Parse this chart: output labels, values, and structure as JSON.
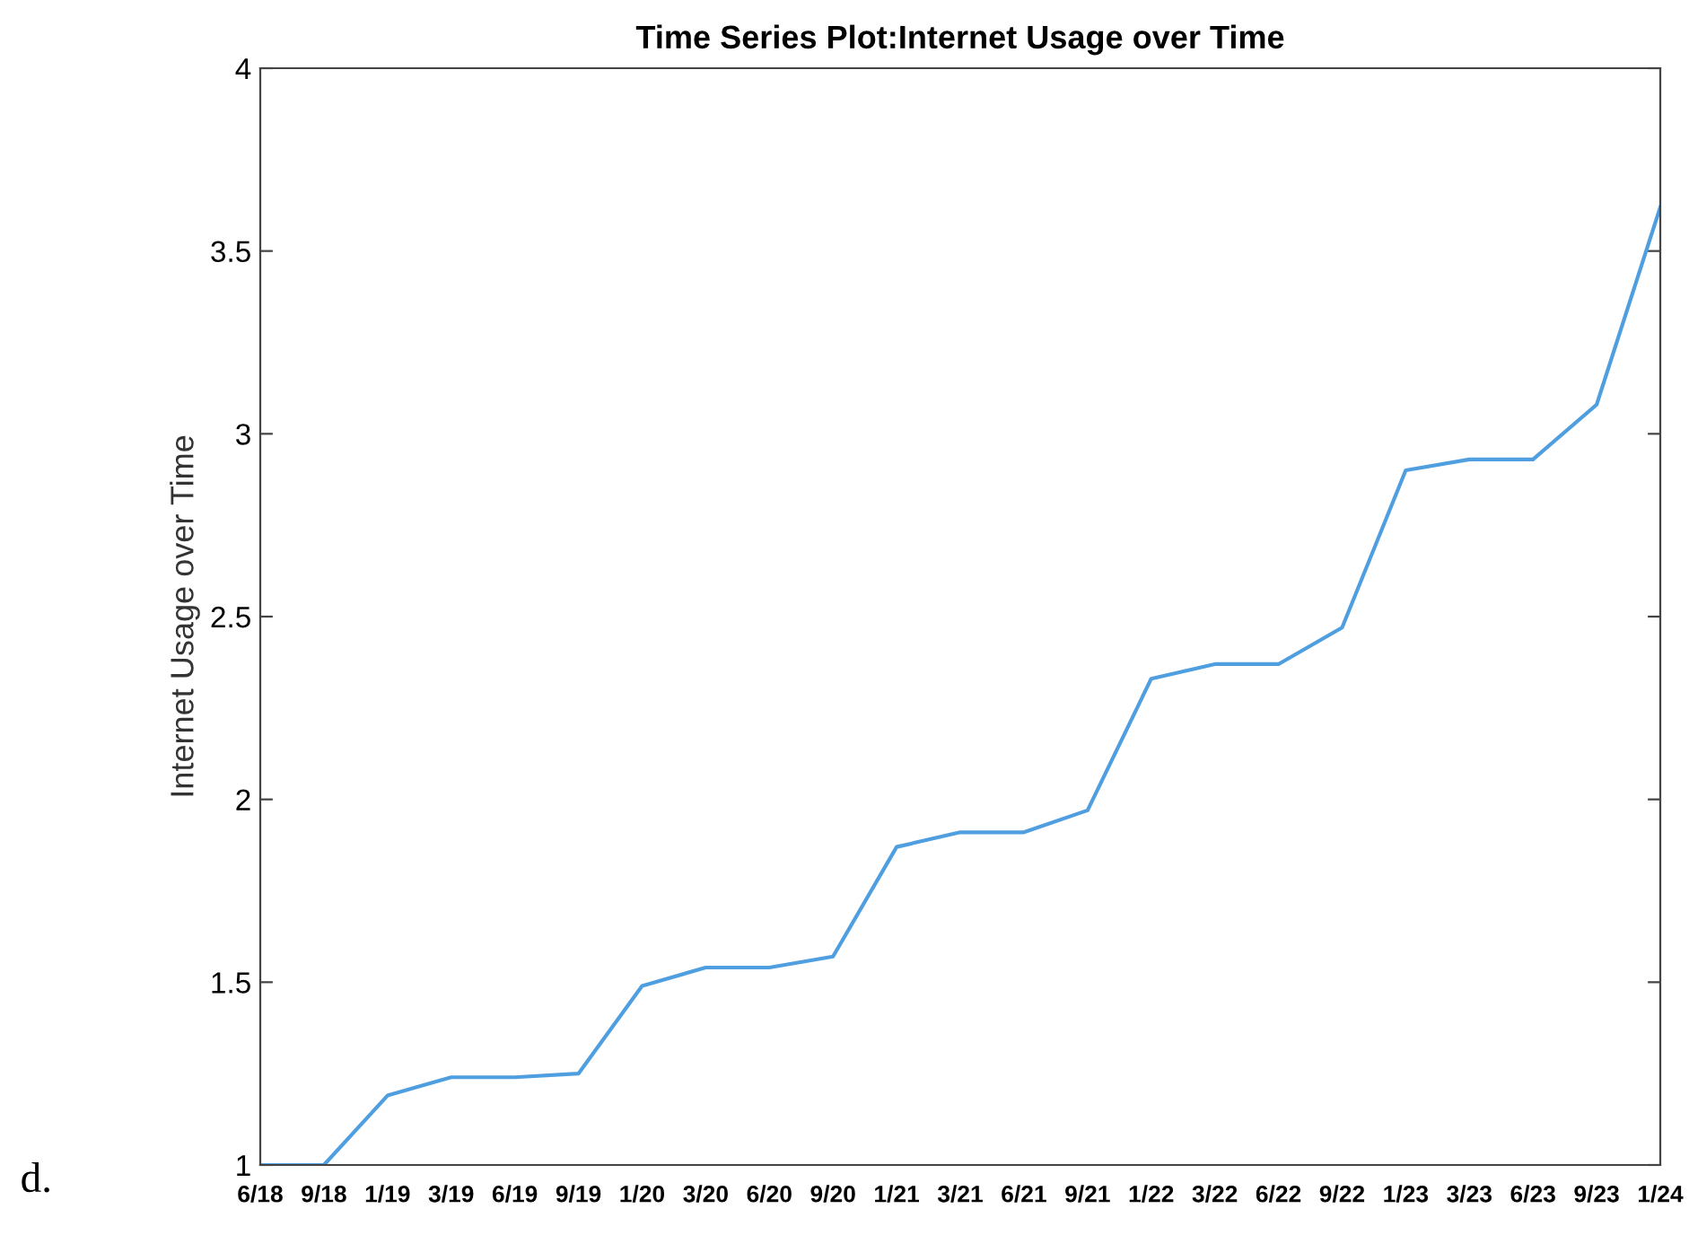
{
  "chart_data": {
    "type": "line",
    "title": "Time Series Plot:Internet Usage over Time",
    "ylabel": "Internet Usage over Time",
    "categories": [
      "6/18",
      "9/18",
      "1/19",
      "3/19",
      "6/19",
      "9/19",
      "1/20",
      "3/20",
      "6/20",
      "9/20",
      "1/21",
      "3/21",
      "6/21",
      "9/21",
      "1/22",
      "3/22",
      "6/22",
      "9/22",
      "1/23",
      "3/23",
      "6/23",
      "9/23",
      "1/24"
    ],
    "series": [
      {
        "color": "#4f9fe0",
        "values": [
          1,
          1,
          1.19,
          1.24,
          1.24,
          1.25,
          1.49,
          1.54,
          1.54,
          1.57,
          1.87,
          1.91,
          1.91,
          1.97,
          2.33,
          2.37,
          2.37,
          2.47,
          2.9,
          2.93,
          2.93,
          3.08,
          3.62
        ]
      }
    ],
    "ylim": [
      1,
      4
    ],
    "yticks": [
      1,
      1.5,
      2,
      2.5,
      3,
      3.5,
      4
    ],
    "grid": false,
    "annotations": [
      "d."
    ]
  }
}
